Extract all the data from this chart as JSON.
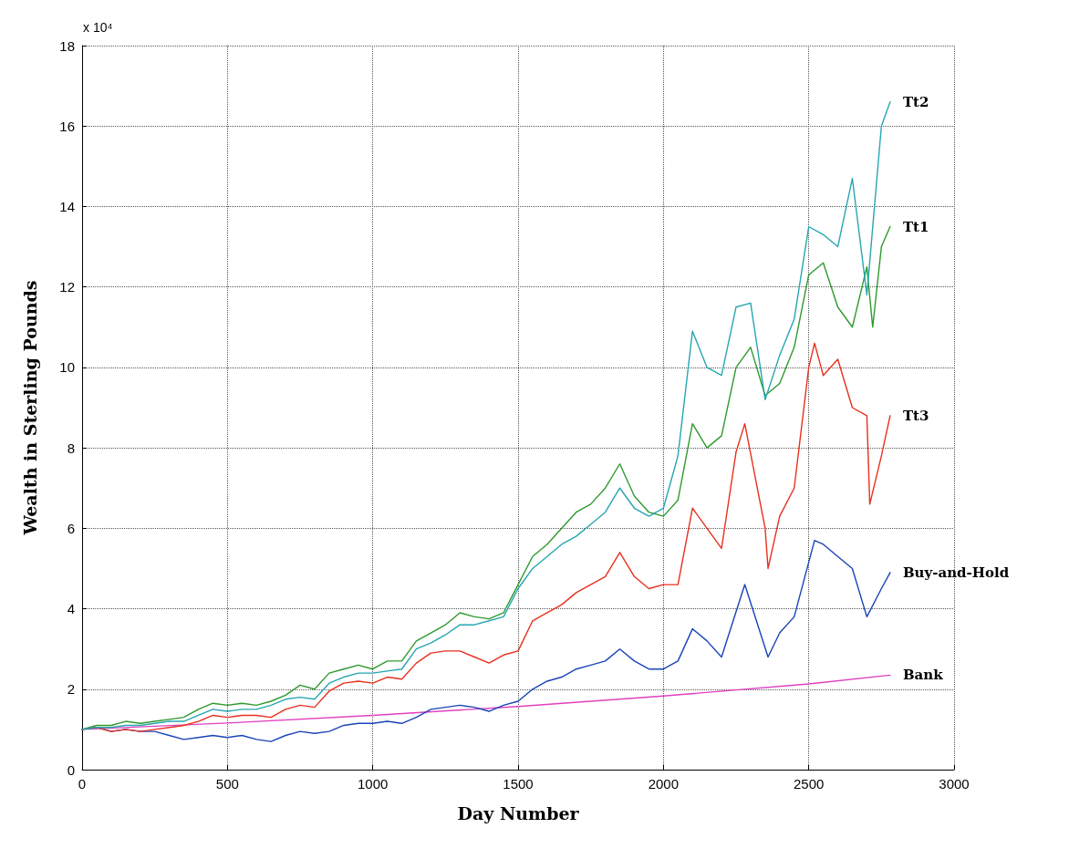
{
  "chart_data": {
    "type": "line",
    "xlabel": "Day Number",
    "ylabel": "Wealth in Sterling Pounds",
    "annotations": [
      "x 10⁴"
    ],
    "xlim": [
      0,
      3000
    ],
    "xticks": [
      0,
      500,
      1000,
      1500,
      2000,
      2500,
      3000
    ],
    "ylim": [
      0,
      18
    ],
    "yticks": [
      0,
      2,
      4,
      6,
      8,
      10,
      12,
      14,
      16,
      18
    ],
    "grid": true,
    "legend": false,
    "marker": "none",
    "line_style": "solid",
    "series": [
      {
        "name": "Tt2",
        "color": "#26a6b0",
        "x": [
          0,
          50,
          100,
          150,
          200,
          250,
          300,
          350,
          400,
          450,
          500,
          550,
          600,
          650,
          700,
          750,
          800,
          850,
          900,
          950,
          1000,
          1050,
          1100,
          1150,
          1200,
          1250,
          1300,
          1350,
          1400,
          1450,
          1500,
          1550,
          1600,
          1650,
          1700,
          1750,
          1800,
          1850,
          1900,
          1950,
          2000,
          2050,
          2100,
          2150,
          2200,
          2250,
          2300,
          2350,
          2400,
          2450,
          2500,
          2550,
          2600,
          2650,
          2700,
          2750,
          2780
        ],
        "values": [
          1.0,
          1.05,
          1.05,
          1.1,
          1.1,
          1.15,
          1.2,
          1.2,
          1.35,
          1.5,
          1.45,
          1.5,
          1.5,
          1.6,
          1.75,
          1.8,
          1.75,
          2.15,
          2.3,
          2.4,
          2.4,
          2.45,
          2.5,
          3.0,
          3.15,
          3.35,
          3.6,
          3.6,
          3.7,
          3.8,
          4.5,
          5.0,
          5.3,
          5.6,
          5.8,
          6.1,
          6.4,
          7.0,
          6.5,
          6.3,
          6.5,
          7.8,
          10.9,
          10.0,
          9.8,
          11.5,
          11.6,
          9.2,
          10.3,
          11.2,
          13.5,
          13.3,
          13.0,
          14.7,
          11.8,
          16.0,
          16.6
        ]
      },
      {
        "name": "Tt1",
        "color": "#2e9a2e",
        "x": [
          0,
          50,
          100,
          150,
          200,
          250,
          300,
          350,
          400,
          450,
          500,
          550,
          600,
          650,
          700,
          750,
          800,
          850,
          900,
          950,
          1000,
          1050,
          1100,
          1150,
          1200,
          1250,
          1300,
          1350,
          1400,
          1450,
          1500,
          1550,
          1600,
          1650,
          1700,
          1750,
          1800,
          1850,
          1900,
          1950,
          2000,
          2050,
          2100,
          2150,
          2200,
          2250,
          2300,
          2350,
          2400,
          2450,
          2500,
          2550,
          2600,
          2650,
          2700,
          2720,
          2750,
          2780
        ],
        "values": [
          1.0,
          1.1,
          1.1,
          1.2,
          1.15,
          1.2,
          1.25,
          1.3,
          1.5,
          1.65,
          1.6,
          1.65,
          1.6,
          1.7,
          1.85,
          2.1,
          2.0,
          2.4,
          2.5,
          2.6,
          2.5,
          2.7,
          2.7,
          3.2,
          3.4,
          3.6,
          3.9,
          3.8,
          3.75,
          3.9,
          4.6,
          5.3,
          5.6,
          6.0,
          6.4,
          6.6,
          7.0,
          7.6,
          6.8,
          6.4,
          6.3,
          6.7,
          8.6,
          8.0,
          8.3,
          10.0,
          10.5,
          9.3,
          9.6,
          10.5,
          12.3,
          12.6,
          11.5,
          11.0,
          12.5,
          11.0,
          13.0,
          13.5
        ]
      },
      {
        "name": "Tt3",
        "color": "#e8301e",
        "x": [
          0,
          50,
          100,
          150,
          200,
          250,
          300,
          350,
          400,
          450,
          500,
          550,
          600,
          650,
          700,
          750,
          800,
          850,
          900,
          950,
          1000,
          1050,
          1100,
          1150,
          1200,
          1250,
          1300,
          1350,
          1400,
          1450,
          1500,
          1550,
          1600,
          1650,
          1700,
          1750,
          1800,
          1850,
          1900,
          1950,
          2000,
          2050,
          2100,
          2150,
          2200,
          2250,
          2280,
          2350,
          2360,
          2400,
          2450,
          2500,
          2520,
          2550,
          2600,
          2650,
          2700,
          2710,
          2750,
          2780
        ],
        "values": [
          1.0,
          1.05,
          0.95,
          1.0,
          0.95,
          1.0,
          1.05,
          1.1,
          1.2,
          1.35,
          1.3,
          1.35,
          1.35,
          1.3,
          1.5,
          1.6,
          1.55,
          1.95,
          2.15,
          2.2,
          2.15,
          2.3,
          2.25,
          2.65,
          2.9,
          2.95,
          2.95,
          2.8,
          2.65,
          2.85,
          2.95,
          3.7,
          3.9,
          4.1,
          4.4,
          4.6,
          4.8,
          5.4,
          4.8,
          4.5,
          4.6,
          4.6,
          6.5,
          6.0,
          5.5,
          7.9,
          8.6,
          6.0,
          5.0,
          6.3,
          7.0,
          10.0,
          10.6,
          9.8,
          10.2,
          9.0,
          8.8,
          6.6,
          7.8,
          8.8
        ]
      },
      {
        "name": "Buy-and-Hold",
        "color": "#1a44b8",
        "x": [
          0,
          50,
          100,
          150,
          200,
          250,
          300,
          350,
          400,
          450,
          500,
          550,
          600,
          650,
          700,
          750,
          800,
          850,
          900,
          950,
          1000,
          1050,
          1100,
          1150,
          1200,
          1250,
          1300,
          1350,
          1400,
          1450,
          1500,
          1550,
          1600,
          1650,
          1700,
          1750,
          1800,
          1850,
          1900,
          1950,
          2000,
          2050,
          2100,
          2150,
          2200,
          2280,
          2360,
          2400,
          2450,
          2520,
          2550,
          2600,
          2650,
          2700,
          2750,
          2780
        ],
        "values": [
          1.0,
          1.05,
          0.95,
          1.0,
          0.95,
          0.95,
          0.85,
          0.75,
          0.8,
          0.85,
          0.8,
          0.85,
          0.75,
          0.7,
          0.85,
          0.95,
          0.9,
          0.95,
          1.1,
          1.15,
          1.15,
          1.2,
          1.15,
          1.3,
          1.5,
          1.55,
          1.6,
          1.55,
          1.45,
          1.6,
          1.7,
          2.0,
          2.2,
          2.3,
          2.5,
          2.6,
          2.7,
          3.0,
          2.7,
          2.5,
          2.5,
          2.7,
          3.5,
          3.2,
          2.8,
          4.6,
          2.8,
          3.4,
          3.8,
          5.7,
          5.6,
          5.3,
          5.0,
          3.8,
          4.5,
          4.9
        ]
      },
      {
        "name": "Bank",
        "color": "#e040c0",
        "x": [
          0,
          500,
          1000,
          1500,
          2000,
          2500,
          2780
        ],
        "values": [
          1.0,
          1.16,
          1.35,
          1.57,
          1.83,
          2.13,
          2.35
        ]
      }
    ]
  }
}
